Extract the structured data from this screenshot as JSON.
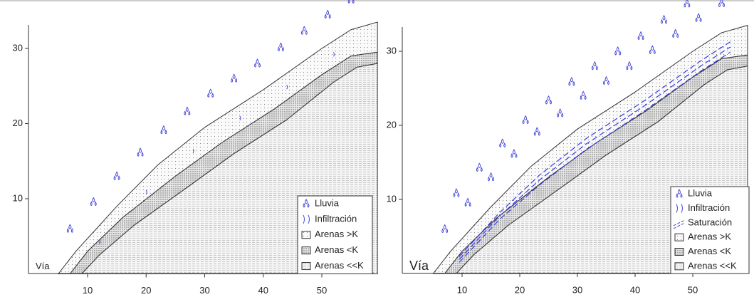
{
  "panels": [
    {
      "yticks": [
        10,
        20,
        30
      ],
      "xticks": [
        10,
        20,
        30,
        40,
        50
      ],
      "road_label": "Vía",
      "legend": [
        "Lluvia",
        "Infiltración",
        "Arenas >K",
        "Arenas <K",
        "Arenas <<K"
      ]
    },
    {
      "yticks": [
        10,
        20,
        30
      ],
      "xticks": [
        10,
        20,
        30,
        40,
        50
      ],
      "road_label": "Vía",
      "legend": [
        "Lluvia",
        "Infiltración",
        "Saturación",
        "Arenas >K",
        "Arenas <K",
        "Arenas <<K"
      ]
    }
  ]
}
